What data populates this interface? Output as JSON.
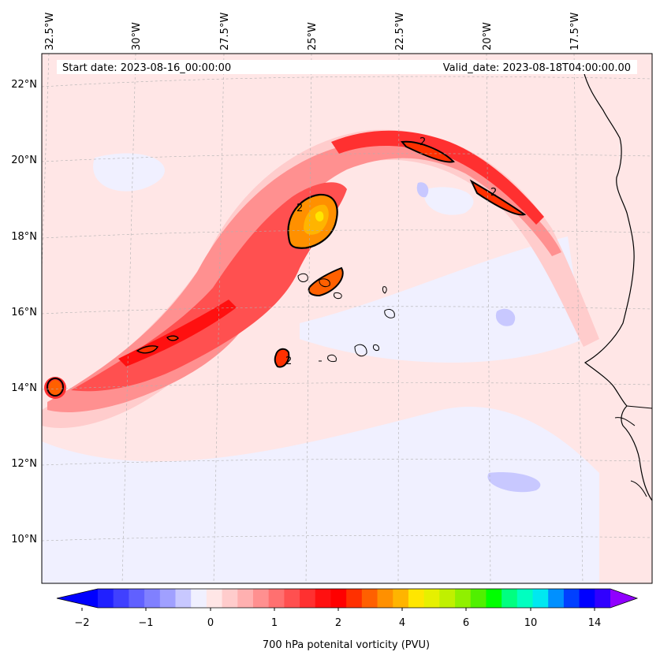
{
  "map": {
    "start_date": "Start date: 2023-08-16_00:00:00",
    "valid_date": "Valid_date: 2023-08-18T04:00:00.00",
    "lon_labels": [
      "32.5°W",
      "30°W",
      "27.5°W",
      "25°W",
      "22.5°W",
      "20°W",
      "17.5°W"
    ],
    "lat_labels": [
      "22°N",
      "20°N",
      "18°N",
      "16°N",
      "14°N",
      "12°N",
      "10°N"
    ],
    "contour_label": "2",
    "colors": {
      "ocean_neg": "#f0f0ff",
      "ocean_pos": "#ffe6e6",
      "land": "#ffe6e6",
      "coast": "#000000"
    }
  },
  "colorbar": {
    "title": "700 hPa potenital vorticity (PVU)",
    "tick_labels": [
      "−2",
      "−1",
      "0",
      "1",
      "2",
      "4",
      "6",
      "10",
      "14"
    ],
    "colors": [
      "#0000ff",
      "#2020ff",
      "#4040ff",
      "#6060ff",
      "#8080ff",
      "#a0a0ff",
      "#c8c8ff",
      "#f0f0ff",
      "#ffe6e6",
      "#ffcccc",
      "#ffb0b0",
      "#ff9090",
      "#ff7070",
      "#ff5050",
      "#ff3030",
      "#ff1010",
      "#ff0000",
      "#ff3000",
      "#ff6000",
      "#ff9000",
      "#ffb400",
      "#ffe600",
      "#e6f000",
      "#c0f000",
      "#90f000",
      "#50f000",
      "#00ff00",
      "#00ff80",
      "#00ffc0",
      "#00e8f0",
      "#0090ff",
      "#0040ff",
      "#0000ff",
      "#3000ff",
      "#9000ff"
    ]
  }
}
